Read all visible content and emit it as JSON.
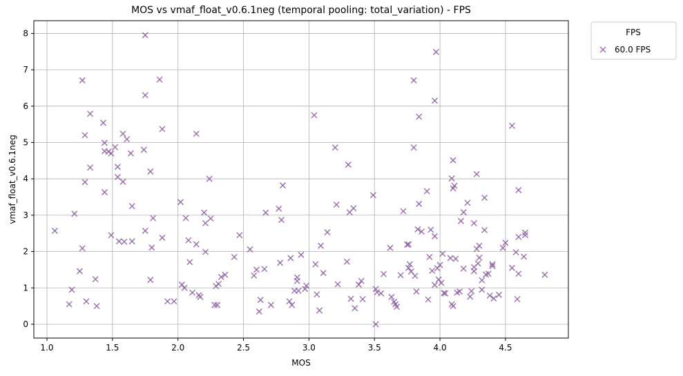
{
  "chart_data": {
    "type": "scatter",
    "title": "MOS vs vmaf_float_v0.6.1neg (temporal pooling: total_variation) - FPS",
    "xlabel": "MOS",
    "ylabel": "vmaf_float_v0.6.1neg",
    "xlim": [
      0.9,
      4.98
    ],
    "ylim": [
      -0.38,
      8.35
    ],
    "xticks": [
      1.0,
      1.5,
      2.0,
      2.5,
      3.0,
      3.5,
      4.0,
      4.5
    ],
    "xtick_labels": [
      "1.0",
      "1.5",
      "2.0",
      "2.5",
      "3.0",
      "3.5",
      "4.0",
      "4.5"
    ],
    "yticks": [
      0,
      1,
      2,
      3,
      4,
      5,
      6,
      7,
      8
    ],
    "ytick_labels": [
      "0",
      "1",
      "2",
      "3",
      "4",
      "5",
      "6",
      "7",
      "8"
    ],
    "grid": true,
    "marker": "x",
    "color": "#8c5fa0",
    "legend": {
      "title": "FPS",
      "placement": "outside-top-right",
      "entries": [
        "60.0 FPS"
      ]
    },
    "series": [
      {
        "name": "60.0 FPS",
        "points": [
          [
            1.06,
            2.57
          ],
          [
            1.17,
            0.55
          ],
          [
            1.19,
            0.95
          ],
          [
            1.21,
            3.04
          ],
          [
            1.25,
            1.46
          ],
          [
            1.27,
            6.71
          ],
          [
            1.27,
            2.09
          ],
          [
            1.29,
            3.91
          ],
          [
            1.29,
            5.2
          ],
          [
            1.3,
            0.63
          ],
          [
            1.33,
            5.79
          ],
          [
            1.33,
            4.31
          ],
          [
            1.37,
            1.24
          ],
          [
            1.38,
            0.5
          ],
          [
            1.43,
            5.54
          ],
          [
            1.44,
            4.99
          ],
          [
            1.44,
            4.76
          ],
          [
            1.44,
            3.63
          ],
          [
            1.47,
            4.75
          ],
          [
            1.49,
            4.7
          ],
          [
            1.49,
            2.45
          ],
          [
            1.52,
            4.87
          ],
          [
            1.54,
            4.33
          ],
          [
            1.54,
            4.05
          ],
          [
            1.55,
            2.28
          ],
          [
            1.58,
            5.24
          ],
          [
            1.58,
            3.92
          ],
          [
            1.59,
            2.27
          ],
          [
            1.61,
            5.09
          ],
          [
            1.64,
            4.7
          ],
          [
            1.65,
            3.25
          ],
          [
            1.65,
            2.28
          ],
          [
            1.75,
            7.95
          ],
          [
            1.75,
            6.3
          ],
          [
            1.74,
            4.8
          ],
          [
            1.75,
            2.57
          ],
          [
            1.79,
            4.2
          ],
          [
            1.79,
            1.22
          ],
          [
            1.8,
            2.11
          ],
          [
            1.81,
            2.92
          ],
          [
            1.86,
            6.73
          ],
          [
            1.88,
            5.37
          ],
          [
            1.88,
            2.38
          ],
          [
            1.92,
            0.63
          ],
          [
            1.97,
            0.63
          ],
          [
            2.02,
            3.36
          ],
          [
            2.03,
            1.09
          ],
          [
            2.05,
            1.0
          ],
          [
            2.06,
            2.92
          ],
          [
            2.08,
            2.31
          ],
          [
            2.09,
            1.71
          ],
          [
            2.11,
            0.87
          ],
          [
            2.14,
            5.24
          ],
          [
            2.14,
            2.2
          ],
          [
            2.16,
            0.8
          ],
          [
            2.17,
            0.75
          ],
          [
            2.2,
            3.07
          ],
          [
            2.21,
            2.78
          ],
          [
            2.21,
            1.99
          ],
          [
            2.24,
            4.0
          ],
          [
            2.25,
            2.91
          ],
          [
            2.28,
            0.53
          ],
          [
            2.29,
            1.05
          ],
          [
            2.3,
            0.53
          ],
          [
            2.31,
            1.11
          ],
          [
            2.33,
            1.3
          ],
          [
            2.36,
            1.36
          ],
          [
            2.43,
            1.85
          ],
          [
            2.47,
            2.45
          ],
          [
            2.55,
            2.06
          ],
          [
            2.58,
            1.34
          ],
          [
            2.6,
            1.5
          ],
          [
            2.62,
            0.35
          ],
          [
            2.63,
            0.67
          ],
          [
            2.66,
            1.52
          ],
          [
            2.67,
            3.07
          ],
          [
            2.71,
            0.53
          ],
          [
            2.77,
            3.18
          ],
          [
            2.78,
            1.69
          ],
          [
            2.79,
            2.87
          ],
          [
            2.8,
            3.82
          ],
          [
            2.85,
            0.63
          ],
          [
            2.86,
            1.82
          ],
          [
            2.87,
            0.53
          ],
          [
            2.89,
            0.92
          ],
          [
            2.91,
            1.29
          ],
          [
            2.91,
            1.19
          ],
          [
            2.92,
            0.92
          ],
          [
            2.94,
            1.91
          ],
          [
            2.97,
            0.97
          ],
          [
            2.98,
            1.06
          ],
          [
            3.04,
            5.75
          ],
          [
            3.05,
            1.65
          ],
          [
            3.06,
            0.82
          ],
          [
            3.08,
            0.38
          ],
          [
            3.09,
            2.16
          ],
          [
            3.11,
            1.41
          ],
          [
            3.14,
            2.53
          ],
          [
            3.2,
            4.86
          ],
          [
            3.21,
            3.29
          ],
          [
            3.22,
            1.1
          ],
          [
            3.29,
            1.72
          ],
          [
            3.3,
            4.39
          ],
          [
            3.31,
            3.08
          ],
          [
            3.32,
            0.7
          ],
          [
            3.34,
            3.19
          ],
          [
            3.35,
            0.44
          ],
          [
            3.38,
            1.09
          ],
          [
            3.4,
            1.19
          ],
          [
            3.41,
            0.69
          ],
          [
            3.49,
            3.55
          ],
          [
            3.51,
            0.97
          ],
          [
            3.51,
            0.0
          ],
          [
            3.52,
            0.88
          ],
          [
            3.55,
            0.85
          ],
          [
            3.57,
            1.38
          ],
          [
            3.62,
            2.1
          ],
          [
            3.63,
            0.75
          ],
          [
            3.65,
            0.62
          ],
          [
            3.66,
            0.55
          ],
          [
            3.67,
            0.48
          ],
          [
            3.7,
            1.35
          ],
          [
            3.72,
            3.11
          ],
          [
            3.75,
            2.19
          ],
          [
            3.76,
            2.2
          ],
          [
            3.76,
            1.55
          ],
          [
            3.77,
            1.65
          ],
          [
            3.78,
            1.45
          ],
          [
            3.8,
            6.71
          ],
          [
            3.8,
            4.86
          ],
          [
            3.81,
            1.33
          ],
          [
            3.82,
            0.9
          ],
          [
            3.83,
            2.61
          ],
          [
            3.84,
            3.31
          ],
          [
            3.84,
            5.71
          ],
          [
            3.86,
            2.55
          ],
          [
            3.9,
            3.66
          ],
          [
            3.91,
            0.68
          ],
          [
            3.92,
            1.85
          ],
          [
            3.93,
            2.6
          ],
          [
            3.94,
            1.47
          ],
          [
            3.96,
            6.15
          ],
          [
            3.96,
            2.42
          ],
          [
            3.96,
            1.08
          ],
          [
            3.97,
            7.49
          ],
          [
            3.98,
            1.54
          ],
          [
            3.99,
            1.23
          ],
          [
            4.0,
            1.63
          ],
          [
            4.01,
            1.14
          ],
          [
            4.02,
            1.94
          ],
          [
            4.03,
            0.86
          ],
          [
            4.04,
            0.85
          ],
          [
            4.08,
            1.82
          ],
          [
            4.09,
            4.01
          ],
          [
            4.09,
            0.55
          ],
          [
            4.1,
            0.5
          ],
          [
            4.1,
            4.51
          ],
          [
            4.1,
            3.74
          ],
          [
            4.11,
            3.81
          ],
          [
            4.12,
            1.8
          ],
          [
            4.13,
            0.87
          ],
          [
            4.15,
            0.9
          ],
          [
            4.16,
            2.84
          ],
          [
            4.18,
            3.08
          ],
          [
            4.18,
            1.53
          ],
          [
            4.21,
            3.34
          ],
          [
            4.23,
            0.76
          ],
          [
            4.24,
            0.91
          ],
          [
            4.26,
            1.57
          ],
          [
            4.26,
            2.78
          ],
          [
            4.26,
            1.46
          ],
          [
            4.28,
            4.13
          ],
          [
            4.28,
            2.07
          ],
          [
            4.29,
            1.67
          ],
          [
            4.3,
            2.16
          ],
          [
            4.3,
            1.83
          ],
          [
            4.32,
            0.95
          ],
          [
            4.32,
            1.21
          ],
          [
            4.34,
            3.48
          ],
          [
            4.34,
            2.59
          ],
          [
            4.35,
            1.37
          ],
          [
            4.37,
            1.39
          ],
          [
            4.38,
            0.79
          ],
          [
            4.4,
            1.65
          ],
          [
            4.4,
            1.6
          ],
          [
            4.41,
            0.71
          ],
          [
            4.45,
            0.81
          ],
          [
            4.48,
            2.1
          ],
          [
            4.5,
            2.24
          ],
          [
            4.55,
            5.46
          ],
          [
            4.55,
            1.55
          ],
          [
            4.58,
            1.98
          ],
          [
            4.59,
            0.69
          ],
          [
            4.6,
            1.39
          ],
          [
            4.6,
            3.69
          ],
          [
            4.6,
            2.4
          ],
          [
            4.64,
            1.86
          ],
          [
            4.65,
            2.52
          ],
          [
            4.65,
            2.45
          ],
          [
            4.8,
            1.36
          ]
        ]
      }
    ]
  }
}
